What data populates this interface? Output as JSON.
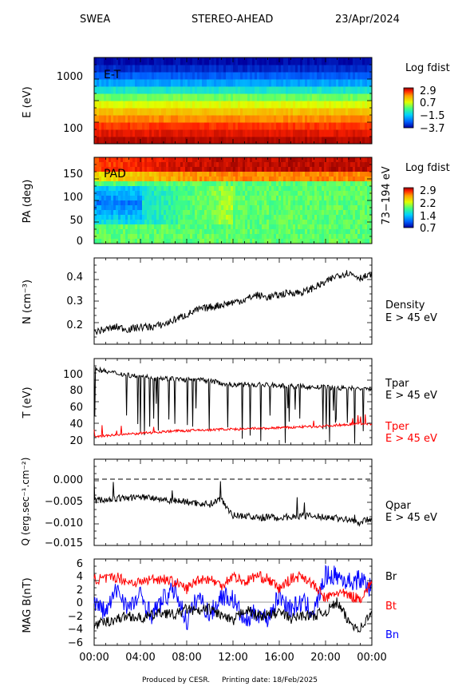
{
  "header": {
    "instrument": "SWEA",
    "spacecraft": "STEREO-AHEAD",
    "date": "23/Apr/2024"
  },
  "footer": {
    "credit": "Produced by CESR.",
    "printing": "Printing date: 18/Feb/2025"
  },
  "colors": {
    "tpar": "#000000",
    "tper": "#ff0000",
    "br": "#000000",
    "bt": "#ff0000",
    "bn": "#0000ff",
    "colormap": [
      "#0000a0",
      "#0060ff",
      "#00d0ff",
      "#40ff80",
      "#e0ff00",
      "#ffa000",
      "#ff2000",
      "#900000"
    ]
  },
  "chart_data": [
    {
      "type": "heatmap",
      "ylabel": "E (eV)",
      "yscale": "log",
      "yticks": [
        "1000",
        "100"
      ],
      "annotation": "E-T",
      "colorbar": {
        "title": "Log fdist",
        "ticks": [
          "2.9",
          "0.7",
          "−1.5",
          "−3.7"
        ]
      },
      "rows_log_fdist_low_to_high_energy": [
        2.6,
        2.2,
        1.8,
        1.2,
        0.7,
        0.1,
        -0.6,
        -1.4,
        -2.2,
        -2.8,
        -3.3,
        -3.6
      ]
    },
    {
      "type": "heatmap",
      "ylabel": "PA (deg)",
      "yticks": [
        "150",
        "100",
        "50",
        "0"
      ],
      "ylim": [
        0,
        180
      ],
      "annotation": "PAD",
      "side_label": "73−194 eV",
      "colorbar": {
        "title": "Log fdist",
        "ticks": [
          "2.9",
          "2.2",
          "1.4",
          "0.7"
        ]
      }
    },
    {
      "type": "line",
      "ylabel": "N (cm⁻³)",
      "yticks": [
        "0.4",
        "0.3",
        "0.2"
      ],
      "ylim": [
        0.12,
        0.47
      ],
      "series": [
        {
          "name": "Density",
          "sublabel": "E > 45 eV",
          "x": [
            0,
            1,
            2,
            3,
            4,
            5,
            6,
            7,
            8,
            9,
            10,
            11,
            12,
            13,
            14,
            15,
            16,
            17,
            18,
            19,
            20,
            21,
            22,
            23,
            24
          ],
          "values": [
            0.17,
            0.18,
            0.19,
            0.18,
            0.19,
            0.19,
            0.2,
            0.22,
            0.24,
            0.26,
            0.27,
            0.28,
            0.29,
            0.3,
            0.32,
            0.31,
            0.32,
            0.33,
            0.33,
            0.35,
            0.37,
            0.4,
            0.41,
            0.39,
            0.4
          ]
        }
      ]
    },
    {
      "type": "line",
      "ylabel": "T (eV)",
      "yticks": [
        "100",
        "80",
        "60",
        "40",
        "20"
      ],
      "ylim": [
        15,
        120
      ],
      "series": [
        {
          "name": "Tpar",
          "sublabel": "E > 45 eV",
          "x": [
            0,
            1,
            2,
            3,
            4,
            5,
            6,
            7,
            8,
            9,
            10,
            11,
            12,
            13,
            14,
            15,
            16,
            17,
            18,
            19,
            20,
            21,
            22,
            23,
            24
          ],
          "values": [
            108,
            104,
            102,
            100,
            98,
            97,
            96,
            95,
            94,
            94,
            93,
            90,
            88,
            89,
            88,
            88,
            87,
            86,
            86,
            85,
            85,
            84,
            84,
            83,
            83
          ]
        },
        {
          "name": "Tper",
          "sublabel": "E > 45 eV",
          "x": [
            0,
            1,
            2,
            3,
            4,
            5,
            6,
            7,
            8,
            9,
            10,
            11,
            12,
            13,
            14,
            15,
            16,
            17,
            18,
            19,
            20,
            21,
            22,
            23,
            24
          ],
          "values": [
            25,
            26,
            27,
            28,
            29,
            30,
            31,
            32,
            32,
            33,
            33,
            34,
            34,
            34,
            35,
            35,
            36,
            36,
            37,
            37,
            38,
            39,
            40,
            41,
            40
          ]
        }
      ]
    },
    {
      "type": "line",
      "ylabel": "Q (erg.sec⁻¹.cm⁻²)",
      "yticks": [
        "0.000",
        "−0.005",
        "−0.010",
        "−0.015"
      ],
      "ylim": [
        -0.016,
        0.0028
      ],
      "reference_line": 0,
      "series": [
        {
          "name": "Qpar",
          "sublabel": "E > 45 eV",
          "x": [
            0,
            1,
            2,
            3,
            4,
            5,
            6,
            7,
            8,
            9,
            10,
            11,
            12,
            13,
            14,
            15,
            16,
            17,
            18,
            19,
            20,
            21,
            22,
            23,
            24
          ],
          "values": [
            -0.0062,
            -0.006,
            -0.0058,
            -0.0056,
            -0.0055,
            -0.0055,
            -0.006,
            -0.0062,
            -0.0065,
            -0.0068,
            -0.007,
            -0.0058,
            -0.0095,
            -0.0095,
            -0.01,
            -0.0098,
            -0.01,
            -0.0097,
            -0.0095,
            -0.0097,
            -0.0098,
            -0.01,
            -0.0105,
            -0.011,
            -0.01
          ]
        }
      ]
    },
    {
      "type": "line",
      "ylabel": "MAG B(nT)",
      "yticks": [
        "6",
        "4",
        "2",
        "0",
        "−2",
        "−4",
        "−6"
      ],
      "ylim": [
        -6.5,
        6.5
      ],
      "xlabel_ticks": [
        "00:00",
        "04:00",
        "08:00",
        "12:00",
        "16:00",
        "20:00",
        "00:00"
      ],
      "series": [
        {
          "name": "Br",
          "x": [
            0,
            1,
            2,
            3,
            4,
            5,
            6,
            7,
            8,
            9,
            10,
            11,
            12,
            13,
            14,
            15,
            16,
            17,
            18,
            19,
            20,
            21,
            22,
            23,
            24
          ],
          "values": [
            -3.5,
            -3.0,
            -2.5,
            -2.0,
            -2.5,
            -2.0,
            -1.5,
            -2.0,
            -1.0,
            -1.5,
            -1.0,
            -2.0,
            -3.0,
            -1.0,
            -2.0,
            -2.0,
            -1.5,
            -2.5,
            -2.0,
            -2.0,
            -1.5,
            0.0,
            -3.0,
            -4.0,
            -1.5
          ]
        },
        {
          "name": "Bt",
          "x": [
            0,
            1,
            2,
            3,
            4,
            5,
            6,
            7,
            8,
            9,
            10,
            11,
            12,
            13,
            14,
            15,
            16,
            17,
            18,
            19,
            20,
            21,
            22,
            23,
            24
          ],
          "values": [
            3.5,
            3.5,
            3.8,
            3.0,
            3.0,
            3.5,
            3.5,
            3.0,
            2.0,
            3.5,
            3.5,
            2.5,
            4.0,
            3.0,
            4.0,
            3.5,
            2.0,
            3.5,
            4.0,
            2.5,
            0.5,
            1.5,
            1.0,
            0.5,
            3.0
          ]
        },
        {
          "name": "Bn",
          "x": [
            0,
            1,
            2,
            3,
            4,
            5,
            6,
            7,
            8,
            9,
            10,
            11,
            12,
            13,
            14,
            15,
            16,
            17,
            18,
            19,
            20,
            21,
            22,
            23,
            24
          ],
          "values": [
            0.0,
            -1.5,
            2.0,
            -1.0,
            1.0,
            -2.0,
            0.5,
            2.0,
            -3.0,
            1.0,
            -2.0,
            1.0,
            0.5,
            -3.0,
            -1.5,
            -2.5,
            1.0,
            -1.0,
            0.0,
            -1.5,
            4.0,
            4.0,
            3.0,
            3.5,
            2.0
          ]
        }
      ]
    }
  ]
}
